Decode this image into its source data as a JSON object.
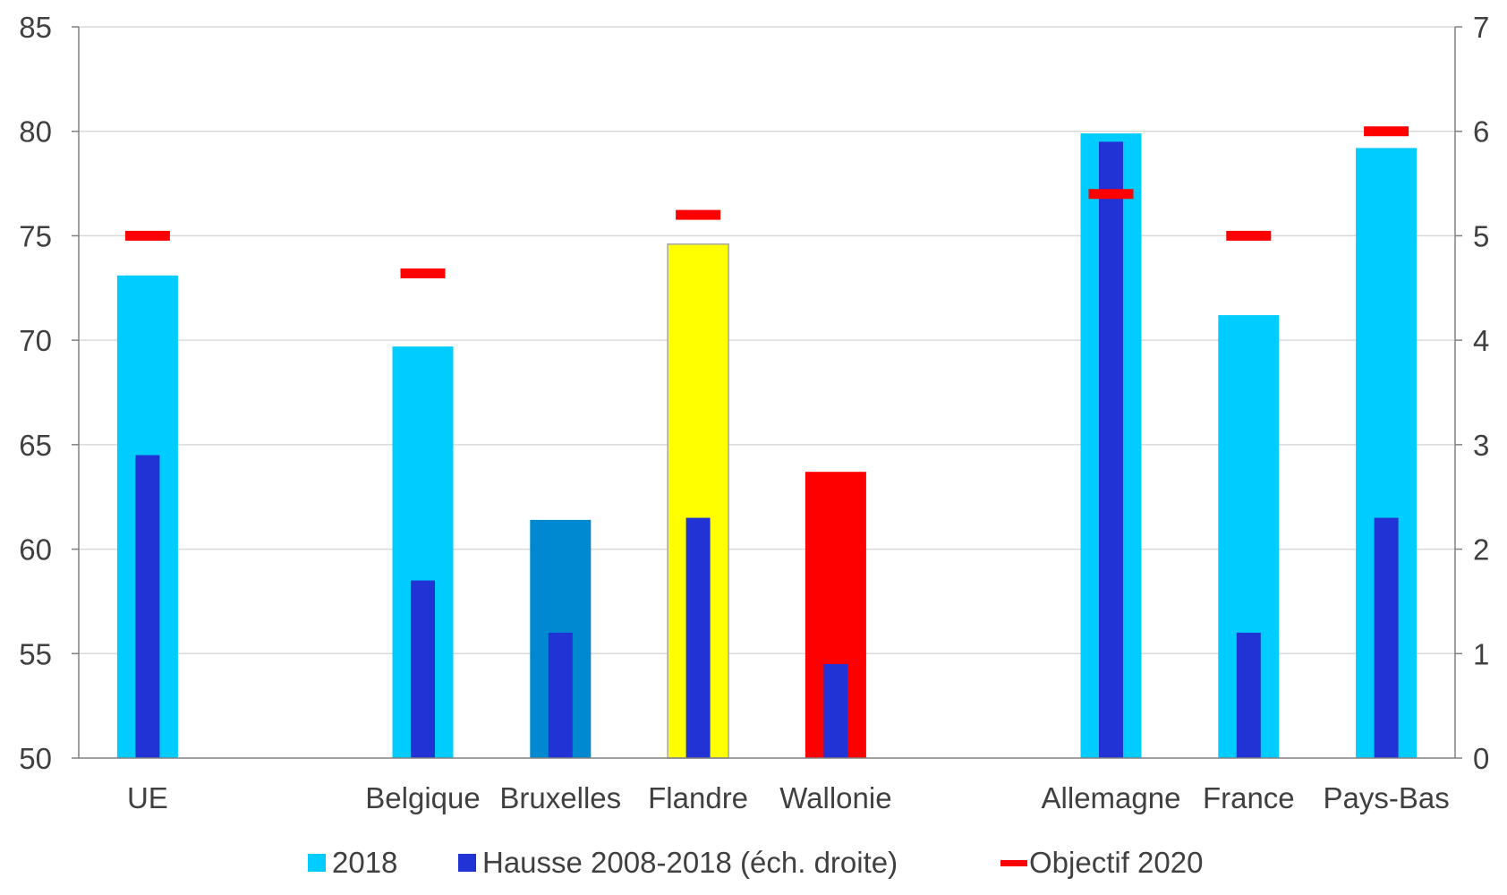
{
  "chart_data": {
    "type": "bar",
    "categories": [
      "UE",
      "",
      "Belgique",
      "Bruxelles",
      "Flandre",
      "Wallonie",
      "",
      "Allemagne",
      "France",
      "Pays-Bas"
    ],
    "series": [
      {
        "name": "2018",
        "axis": "left",
        "values": [
          73.1,
          null,
          69.7,
          61.4,
          74.6,
          63.7,
          null,
          79.9,
          71.2,
          79.2
        ],
        "colors": [
          "#00ccff",
          null,
          "#00ccff",
          "#0088d1",
          "#ffff00",
          "#ff0000",
          null,
          "#00ccff",
          "#00ccff",
          "#00ccff"
        ]
      },
      {
        "name": "Hausse 2008-2018 (éch. droite)",
        "axis": "right",
        "values": [
          2.9,
          null,
          1.7,
          1.2,
          2.3,
          0.9,
          null,
          5.9,
          1.2,
          2.3
        ],
        "color": "#2233d6"
      },
      {
        "name": "Objectif 2020",
        "axis": "left",
        "values": [
          75,
          null,
          73.2,
          null,
          76,
          null,
          null,
          77,
          75,
          80
        ],
        "color": "#ff0000"
      }
    ],
    "y_left": {
      "min": 50,
      "max": 85,
      "ticks": [
        "50",
        "55",
        "60",
        "65",
        "70",
        "75",
        "80",
        "85"
      ]
    },
    "y_right": {
      "min": 0,
      "max": 7,
      "ticks": [
        "0",
        "1",
        "2",
        "3",
        "4",
        "5",
        "6",
        "7"
      ]
    },
    "grid": true,
    "legend_position": "bottom",
    "gridline_color": "#d9d9d9",
    "axis_color": "#808080"
  }
}
